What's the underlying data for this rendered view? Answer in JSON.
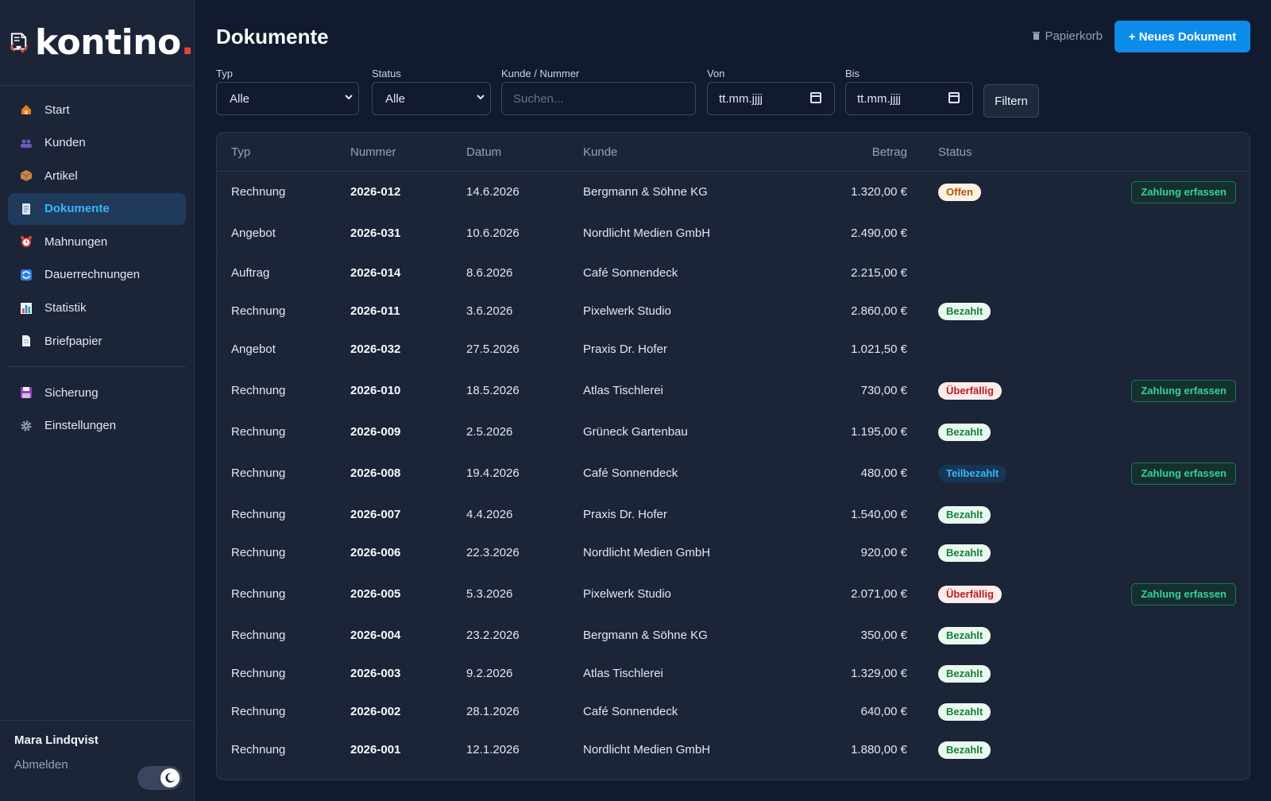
{
  "brand": {
    "name": "kontino",
    "dot": "."
  },
  "sidebar": {
    "items": [
      {
        "label": "Start",
        "icon": "house-icon"
      },
      {
        "label": "Kunden",
        "icon": "users-icon"
      },
      {
        "label": "Artikel",
        "icon": "box-icon"
      },
      {
        "label": "Dokumente",
        "icon": "document-icon",
        "active": true
      },
      {
        "label": "Mahnungen",
        "icon": "alarm-clock-icon"
      },
      {
        "label": "Dauerrechnungen",
        "icon": "repeat-icon"
      },
      {
        "label": "Statistik",
        "icon": "bar-chart-icon"
      },
      {
        "label": "Briefpapier",
        "icon": "page-icon"
      }
    ],
    "secondary": [
      {
        "label": "Sicherung",
        "icon": "floppy-disk-icon"
      },
      {
        "label": "Einstellungen",
        "icon": "gear-icon"
      }
    ],
    "user_name": "Mara Lindqvist",
    "logout": "Abmelden"
  },
  "header": {
    "title": "Dokumente",
    "trash": "Papierkorb",
    "new_button": "+ Neues Dokument"
  },
  "filters": {
    "typ_label": "Typ",
    "typ_value": "Alle",
    "status_label": "Status",
    "status_value": "Alle",
    "search_label": "Kunde / Nummer",
    "search_placeholder": "Suchen...",
    "von_label": "Von",
    "von_placeholder": "tt.mm.jjjj",
    "bis_label": "Bis",
    "bis_placeholder": "tt.mm.jjjj",
    "filter_button": "Filtern"
  },
  "table": {
    "headers": {
      "typ": "Typ",
      "nummer": "Nummer",
      "datum": "Datum",
      "kunde": "Kunde",
      "betrag": "Betrag",
      "status": "Status"
    },
    "action_label": "Zahlung erfassen",
    "rows": [
      {
        "typ": "Rechnung",
        "nummer": "2026-012",
        "datum": "14.6.2026",
        "kunde": "Bergmann & Söhne KG",
        "betrag": "1.320,00 €",
        "status": "Offen",
        "status_kind": "offen",
        "action": true
      },
      {
        "typ": "Angebot",
        "nummer": "2026-031",
        "datum": "10.6.2026",
        "kunde": "Nordlicht Medien GmbH",
        "betrag": "2.490,00 €",
        "status": "",
        "status_kind": "",
        "action": false
      },
      {
        "typ": "Auftrag",
        "nummer": "2026-014",
        "datum": "8.6.2026",
        "kunde": "Café Sonnendeck",
        "betrag": "2.215,00 €",
        "status": "",
        "status_kind": "",
        "action": false
      },
      {
        "typ": "Rechnung",
        "nummer": "2026-011",
        "datum": "3.6.2026",
        "kunde": "Pixelwerk Studio",
        "betrag": "2.860,00 €",
        "status": "Bezahlt",
        "status_kind": "bezahlt",
        "action": false
      },
      {
        "typ": "Angebot",
        "nummer": "2026-032",
        "datum": "27.5.2026",
        "kunde": "Praxis Dr. Hofer",
        "betrag": "1.021,50 €",
        "status": "",
        "status_kind": "",
        "action": false
      },
      {
        "typ": "Rechnung",
        "nummer": "2026-010",
        "datum": "18.5.2026",
        "kunde": "Atlas Tischlerei",
        "betrag": "730,00 €",
        "status": "Überfällig",
        "status_kind": "ueber",
        "action": true
      },
      {
        "typ": "Rechnung",
        "nummer": "2026-009",
        "datum": "2.5.2026",
        "kunde": "Grüneck Gartenbau",
        "betrag": "1.195,00 €",
        "status": "Bezahlt",
        "status_kind": "bezahlt",
        "action": false
      },
      {
        "typ": "Rechnung",
        "nummer": "2026-008",
        "datum": "19.4.2026",
        "kunde": "Café Sonnendeck",
        "betrag": "480,00 €",
        "status": "Teilbezahlt",
        "status_kind": "teil",
        "action": true
      },
      {
        "typ": "Rechnung",
        "nummer": "2026-007",
        "datum": "4.4.2026",
        "kunde": "Praxis Dr. Hofer",
        "betrag": "1.540,00 €",
        "status": "Bezahlt",
        "status_kind": "bezahlt",
        "action": false
      },
      {
        "typ": "Rechnung",
        "nummer": "2026-006",
        "datum": "22.3.2026",
        "kunde": "Nordlicht Medien GmbH",
        "betrag": "920,00 €",
        "status": "Bezahlt",
        "status_kind": "bezahlt",
        "action": false
      },
      {
        "typ": "Rechnung",
        "nummer": "2026-005",
        "datum": "5.3.2026",
        "kunde": "Pixelwerk Studio",
        "betrag": "2.071,00 €",
        "status": "Überfällig",
        "status_kind": "ueber",
        "action": true
      },
      {
        "typ": "Rechnung",
        "nummer": "2026-004",
        "datum": "23.2.2026",
        "kunde": "Bergmann & Söhne KG",
        "betrag": "350,00 €",
        "status": "Bezahlt",
        "status_kind": "bezahlt",
        "action": false
      },
      {
        "typ": "Rechnung",
        "nummer": "2026-003",
        "datum": "9.2.2026",
        "kunde": "Atlas Tischlerei",
        "betrag": "1.329,00 €",
        "status": "Bezahlt",
        "status_kind": "bezahlt",
        "action": false
      },
      {
        "typ": "Rechnung",
        "nummer": "2026-002",
        "datum": "28.1.2026",
        "kunde": "Café Sonnendeck",
        "betrag": "640,00 €",
        "status": "Bezahlt",
        "status_kind": "bezahlt",
        "action": false
      },
      {
        "typ": "Rechnung",
        "nummer": "2026-001",
        "datum": "12.1.2026",
        "kunde": "Nordlicht Medien GmbH",
        "betrag": "1.880,00 €",
        "status": "Bezahlt",
        "status_kind": "bezahlt",
        "action": false
      }
    ]
  },
  "colors": {
    "accent": "#0c8ce9",
    "active_nav": "#38b6f6",
    "pay_green": "#34d399"
  }
}
